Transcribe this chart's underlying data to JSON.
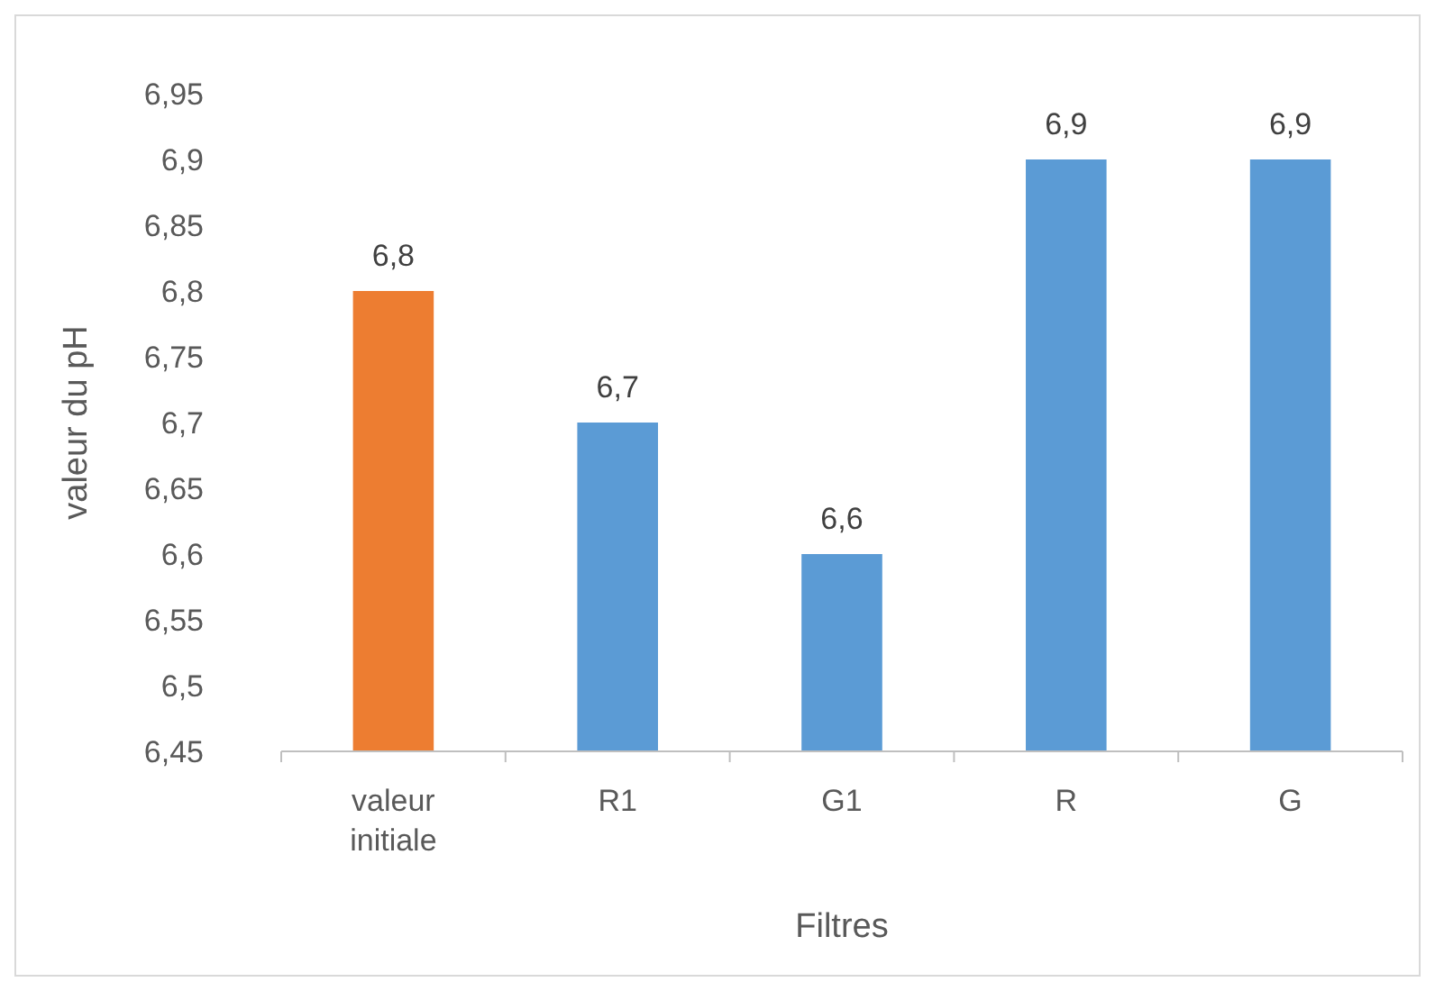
{
  "chart_data": {
    "type": "bar",
    "xlabel": "Filtres",
    "ylabel": "valeur du pH",
    "categories": [
      "valeur initiale",
      "R1",
      "G1",
      "R",
      "G"
    ],
    "values": [
      6.8,
      6.7,
      6.6,
      6.9,
      6.9
    ],
    "colors": [
      "#ed7d31",
      "#5b9bd5",
      "#5b9bd5",
      "#5b9bd5",
      "#5b9bd5"
    ],
    "value_labels": [
      "6,8",
      "6,7",
      "6,6",
      "6,9",
      "6,9"
    ],
    "ylim": [
      6.45,
      6.95
    ],
    "yticks": [
      {
        "value": 6.45,
        "label": "6,45"
      },
      {
        "value": 6.5,
        "label": "6,5"
      },
      {
        "value": 6.55,
        "label": "6,55"
      },
      {
        "value": 6.6,
        "label": "6,6"
      },
      {
        "value": 6.65,
        "label": "6,65"
      },
      {
        "value": 6.7,
        "label": "6,7"
      },
      {
        "value": 6.75,
        "label": "6,75"
      },
      {
        "value": 6.8,
        "label": "6,8"
      },
      {
        "value": 6.85,
        "label": "6,85"
      },
      {
        "value": 6.9,
        "label": "6,9"
      },
      {
        "value": 6.95,
        "label": "6,95"
      }
    ],
    "grid": false
  }
}
